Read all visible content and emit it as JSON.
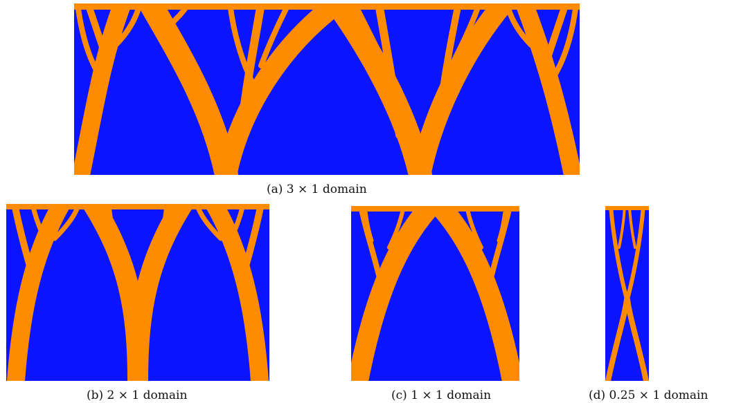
{
  "colors": {
    "solid": "#ff8c00",
    "void": "#0a14ff"
  },
  "figures": {
    "a": {
      "caption": "(a) 3 × 1 domain"
    },
    "b": {
      "caption": "(b) 2 × 1 domain"
    },
    "c": {
      "caption": "(c) 1 × 1 domain"
    },
    "d": {
      "caption": "(d) 0.25 × 1 domain"
    }
  }
}
